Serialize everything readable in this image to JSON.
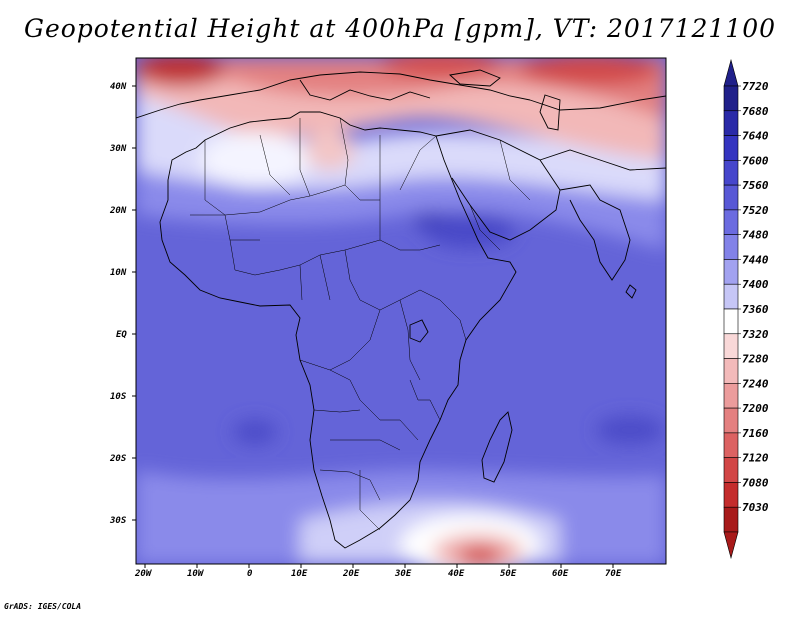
{
  "title": "Geopotential Height at 400hPa [gpm], VT: 2017121100",
  "footer": "GrADS: IGES/COLA",
  "map": {
    "lat_labels": [
      "40N",
      "30N",
      "20N",
      "10N",
      "EQ",
      "10S",
      "20S",
      "30S"
    ],
    "lon_labels": [
      "20W",
      "10W",
      "0",
      "10E",
      "20E",
      "30E",
      "40E",
      "50E",
      "60E",
      "70E"
    ]
  },
  "colorbar": {
    "levels": [
      "7720",
      "7680",
      "7640",
      "7600",
      "7560",
      "7520",
      "7480",
      "7440",
      "7400",
      "7360",
      "7320",
      "7280",
      "7240",
      "7200",
      "7160",
      "7120",
      "7080",
      "7030"
    ],
    "colors": [
      "#20208a",
      "#2a2aa8",
      "#3434c0",
      "#4646cc",
      "#5858d6",
      "#6b6be0",
      "#8282e8",
      "#a2a2f0",
      "#c6c6f6",
      "#ffffff",
      "#f9d8d8",
      "#f3baba",
      "#ec9c9c",
      "#e48080",
      "#dc6262",
      "#d24646",
      "#c42c2c",
      "#a81a1a"
    ]
  }
}
